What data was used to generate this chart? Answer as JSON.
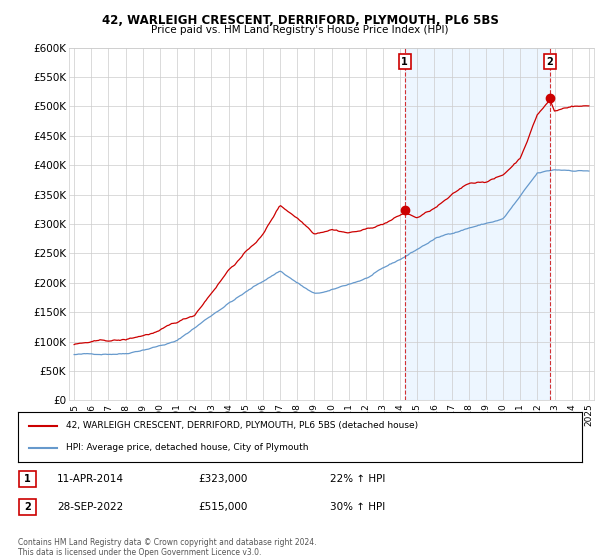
{
  "title1": "42, WARLEIGH CRESCENT, DERRIFORD, PLYMOUTH, PL6 5BS",
  "title2": "Price paid vs. HM Land Registry's House Price Index (HPI)",
  "ylim": [
    0,
    600000
  ],
  "ytick_labels": [
    "£0",
    "£50K",
    "£100K",
    "£150K",
    "£200K",
    "£250K",
    "£300K",
    "£350K",
    "£400K",
    "£450K",
    "£500K",
    "£550K",
    "£600K"
  ],
  "ytick_vals": [
    0,
    50000,
    100000,
    150000,
    200000,
    250000,
    300000,
    350000,
    400000,
    450000,
    500000,
    550000,
    600000
  ],
  "xlim_start": 1994.7,
  "xlim_end": 2025.3,
  "marker1_x": 2014.27,
  "marker1_y": 323000,
  "marker1_label": "1",
  "marker1_date": "11-APR-2014",
  "marker1_price": "£323,000",
  "marker1_hpi": "22% ↑ HPI",
  "marker2_x": 2022.74,
  "marker2_y": 515000,
  "marker2_label": "2",
  "marker2_date": "28-SEP-2022",
  "marker2_price": "£515,000",
  "marker2_hpi": "30% ↑ HPI",
  "red_color": "#cc0000",
  "blue_color": "#6699cc",
  "blue_fill_color": "#ddeeff",
  "vline_color": "#cc0000",
  "grid_color": "#cccccc",
  "legend_label_red": "42, WARLEIGH CRESCENT, DERRIFORD, PLYMOUTH, PL6 5BS (detached house)",
  "legend_label_blue": "HPI: Average price, detached house, City of Plymouth",
  "footer": "Contains HM Land Registry data © Crown copyright and database right 2024.\nThis data is licensed under the Open Government Licence v3.0.",
  "background_color": "#ffffff"
}
